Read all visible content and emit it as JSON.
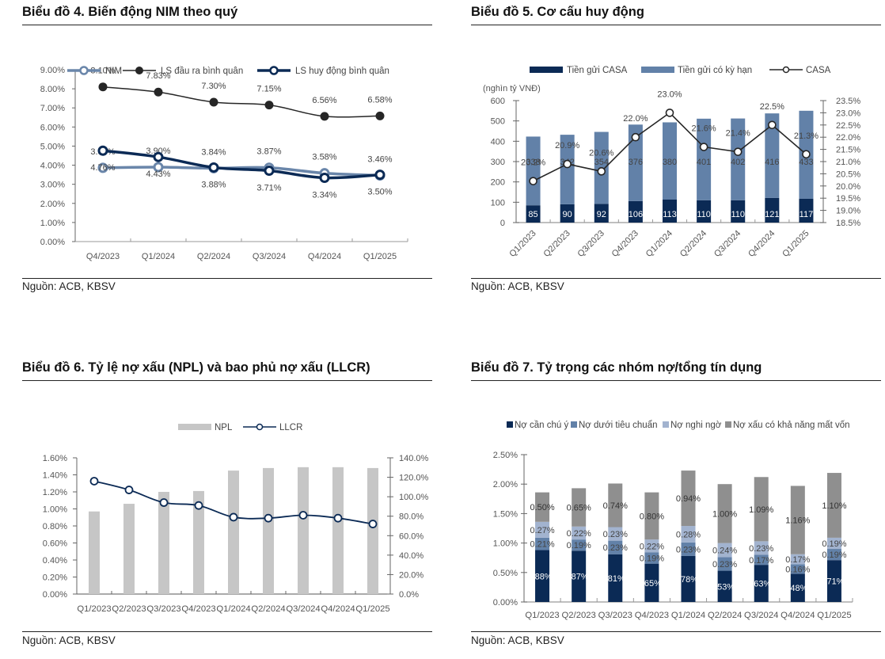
{
  "panels": [
    {
      "title": "Biểu đồ 4. Biến động NIM theo quý",
      "source": "Nguồn: ACB, KBSV"
    },
    {
      "title": "Biểu đồ 5. Cơ cấu huy động",
      "source": "Nguồn: ACB, KBSV"
    },
    {
      "title": "Biểu đồ 6. Tỷ lệ nợ xấu (NPL) và bao phủ nợ xấu (LLCR)",
      "source": "Nguồn: ACB, KBSV"
    },
    {
      "title": "Biểu đồ 7. Tỷ trọng các nhóm nợ/tổng tín dụng",
      "source": "Nguồn: ACB, KBSV"
    }
  ],
  "chart_data": [
    {
      "id": "nim",
      "type": "line",
      "title": "Biểu đồ 4. Biến động NIM theo quý",
      "categories": [
        "Q4/2023",
        "Q1/2024",
        "Q2/2024",
        "Q3/2024",
        "Q4/2024",
        "Q1/2025"
      ],
      "ylim": [
        0,
        9
      ],
      "yticks": [
        "0.00%",
        "1.00%",
        "2.00%",
        "3.00%",
        "4.00%",
        "5.00%",
        "6.00%",
        "7.00%",
        "8.00%",
        "9.00%"
      ],
      "legend_position": "top",
      "series": [
        {
          "name": "NIM",
          "color": "#6a86aa",
          "values": [
            3.86,
            3.9,
            3.84,
            3.87,
            3.58,
            3.46
          ],
          "labels": [
            "3.86%",
            "3.90%",
            "3.84%",
            "3.87%",
            "3.58%",
            "3.46%"
          ],
          "label_pos": "above"
        },
        {
          "name": "LS đầu ra bình quân",
          "color": "#262626",
          "values": [
            8.1,
            7.83,
            7.3,
            7.15,
            6.56,
            6.58
          ],
          "labels": [
            "8.10%",
            "7.83%",
            "7.30%",
            "7.15%",
            "6.56%",
            "6.58%"
          ],
          "label_pos": "above"
        },
        {
          "name": "LS huy động bình quân",
          "color": "#0b2a55",
          "values": [
            4.76,
            4.43,
            3.88,
            3.71,
            3.34,
            3.5
          ],
          "labels": [
            "4.76%",
            "4.43%",
            "3.88%",
            "3.71%",
            "3.34%",
            "3.50%"
          ],
          "label_pos": "below"
        }
      ]
    },
    {
      "id": "mobilization",
      "type": "bar",
      "stacked": true,
      "title": "Biểu đồ 5. Cơ cấu huy động",
      "ylabel": "(nghìn tỷ VNĐ)",
      "categories": [
        "Q1/2023",
        "Q2/2023",
        "Q3/2023",
        "Q4/2023",
        "Q1/2024",
        "Q2/2024",
        "Q3/2024",
        "Q4/2024",
        "Q1/2025"
      ],
      "ylim": [
        0,
        600
      ],
      "yticks": [
        "0",
        "100",
        "200",
        "300",
        "400",
        "500",
        "600"
      ],
      "y2lim": [
        18.5,
        23.5
      ],
      "y2ticks": [
        "18.5%",
        "19.0%",
        "19.5%",
        "20.0%",
        "20.5%",
        "21.0%",
        "21.5%",
        "22.0%",
        "22.5%",
        "23.0%",
        "23.5%"
      ],
      "legend_position": "top",
      "series": [
        {
          "name": "Tiền gửi CASA",
          "color": "#0b2a55",
          "values": [
            85,
            90,
            92,
            106,
            113,
            110,
            110,
            121,
            117
          ]
        },
        {
          "name": "Tiền gửi có kỳ hạn",
          "color": "#6281a8",
          "values": [
            338,
            342,
            354,
            376,
            380,
            401,
            402,
            416,
            433
          ]
        },
        {
          "name": "CASA",
          "type": "line",
          "axis": "right",
          "color": "#262626",
          "values": [
            20.2,
            20.9,
            20.6,
            22.0,
            23.0,
            21.6,
            21.4,
            22.5,
            21.3
          ],
          "labels": [
            "20.2%",
            "20.9%",
            "20.6%",
            "22.0%",
            "23.0%",
            "21.6%",
            "21.4%",
            "22.5%",
            "21.3%"
          ]
        }
      ]
    },
    {
      "id": "npl",
      "type": "bar",
      "title": "Biểu đồ 6. Tỷ lệ nợ xấu (NPL) và bao phủ nợ xấu (LLCR)",
      "categories": [
        "Q1/2023",
        "Q2/2023",
        "Q3/2023",
        "Q4/2023",
        "Q1/2024",
        "Q2/2024",
        "Q3/2024",
        "Q4/2024",
        "Q1/2025"
      ],
      "ylim": [
        0,
        1.6
      ],
      "yticks": [
        "0.00%",
        "0.20%",
        "0.40%",
        "0.60%",
        "0.80%",
        "1.00%",
        "1.20%",
        "1.40%",
        "1.60%"
      ],
      "y2lim": [
        0,
        140
      ],
      "y2ticks": [
        "0.0%",
        "20.0%",
        "40.0%",
        "60.0%",
        "80.0%",
        "100.0%",
        "120.0%",
        "140.0%"
      ],
      "legend_position": "top",
      "series": [
        {
          "name": "NPL",
          "color": "#c6c6c6",
          "values": [
            0.97,
            1.06,
            1.2,
            1.21,
            1.45,
            1.48,
            1.49,
            1.49,
            1.48
          ]
        },
        {
          "name": "LLCR",
          "type": "line",
          "axis": "right",
          "color": "#0b2a55",
          "values": [
            116,
            107,
            94,
            91,
            79,
            78,
            81,
            78,
            72
          ]
        }
      ]
    },
    {
      "id": "loan_groups",
      "type": "bar",
      "stacked": true,
      "title": "Biểu đồ 7. Tỷ trọng các nhóm nợ/tổng tín dụng",
      "categories": [
        "Q1/2023",
        "Q2/2023",
        "Q3/2023",
        "Q4/2023",
        "Q1/2024",
        "Q2/2024",
        "Q3/2024",
        "Q4/2024",
        "Q1/2025"
      ],
      "ylim": [
        0,
        2.5
      ],
      "yticks": [
        "0.00%",
        "0.50%",
        "1.00%",
        "1.50%",
        "2.00%",
        "2.50%"
      ],
      "legend_position": "top",
      "series": [
        {
          "name": "Nợ cần chú ý",
          "color": "#0b2a55",
          "label_color": "#ffffff",
          "values": [
            0.88,
            0.87,
            0.81,
            0.65,
            0.78,
            0.53,
            0.63,
            0.48,
            0.71
          ],
          "labels": [
            ".88%",
            ".87%",
            ".81%",
            ".65%",
            ".78%",
            ".53%",
            ".63%",
            ".48%",
            ".71%"
          ]
        },
        {
          "name": "Nợ dưới tiêu chuẩn",
          "color": "#6281a8",
          "label_color": "#444444",
          "values": [
            0.21,
            0.19,
            0.23,
            0.19,
            0.23,
            0.23,
            0.17,
            0.16,
            0.19
          ],
          "labels": [
            "0.21%",
            "0.19%",
            "0.23%",
            "0.19%",
            "0.23%",
            "0.23%",
            "0.17%",
            "0.16%",
            "0.19%"
          ]
        },
        {
          "name": "Nợ nghi ngờ",
          "color": "#a2b3cf",
          "label_color": "#444444",
          "values": [
            0.27,
            0.22,
            0.23,
            0.22,
            0.28,
            0.24,
            0.23,
            0.17,
            0.19
          ],
          "labels": [
            "0.27%",
            "0.22%",
            "0.23%",
            "0.22%",
            "0.28%",
            "0.24%",
            "0.23%",
            "0.17%",
            "0.19%"
          ]
        },
        {
          "name": "Nợ xấu có khả năng mất vốn",
          "color": "#8f8f8f",
          "label_color": "#333333",
          "values": [
            0.5,
            0.65,
            0.74,
            0.8,
            0.94,
            1.0,
            1.09,
            1.16,
            1.1
          ],
          "labels": [
            "0.50%",
            "0.65%",
            "0.74%",
            "0.80%",
            "0.94%",
            "1.00%",
            "1.09%",
            "1.16%",
            "1.10%"
          ]
        }
      ]
    }
  ]
}
